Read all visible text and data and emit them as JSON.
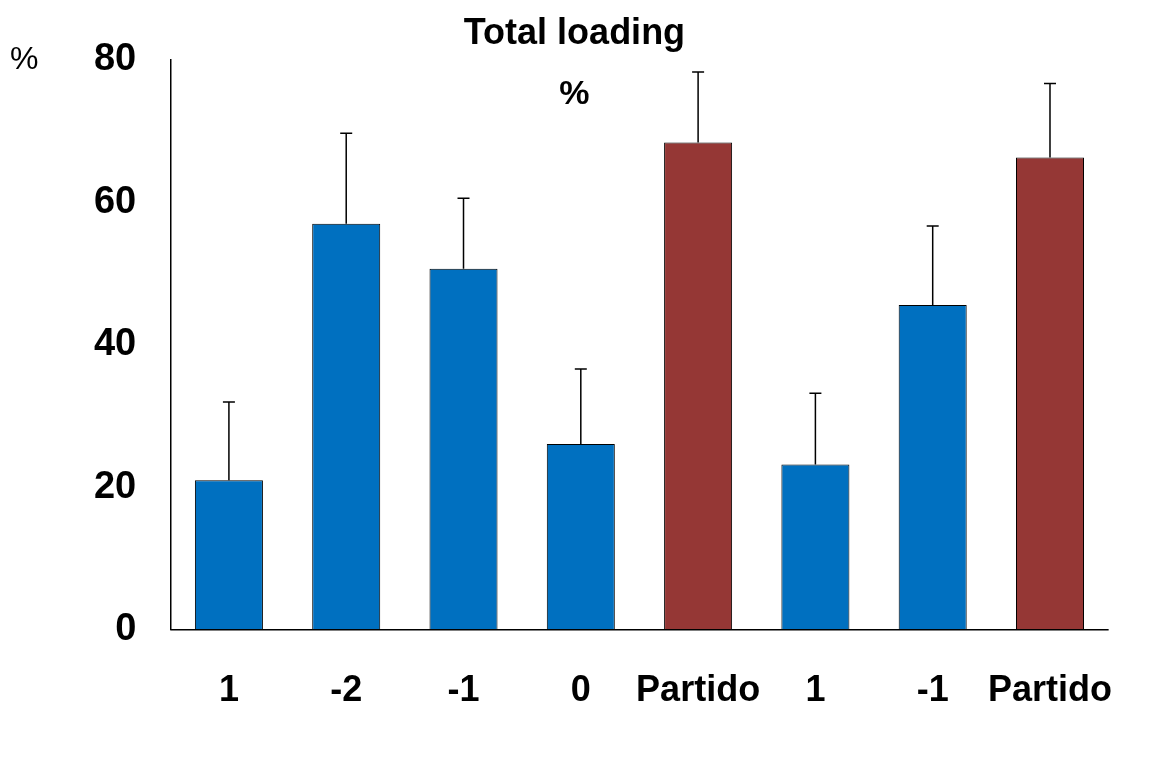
{
  "chart_data": {
    "type": "bar",
    "title": "Total loading",
    "subtitle": "%",
    "ylabel": "%",
    "categories": [
      "1",
      "-2",
      "-1",
      "0",
      "Partido",
      "1",
      "-1",
      "Partido"
    ],
    "values": [
      21,
      57,
      50.7,
      26.1,
      68.4,
      23.2,
      45.6,
      66.3
    ],
    "colors": [
      "#0070c0",
      "#0070c0",
      "#0070c0",
      "#0070c0",
      "#953735",
      "#0070c0",
      "#0070c0",
      "#953735"
    ],
    "errors": [
      [
        21,
        32
      ],
      [
        57,
        69.7
      ],
      [
        50.7,
        60.6
      ],
      [
        26.1,
        36.6
      ],
      [
        68.4,
        78.3
      ],
      [
        23.2,
        33.2
      ],
      [
        45.6,
        56.7
      ],
      [
        66.3,
        76.7
      ]
    ],
    "ylim": [
      0,
      80
    ],
    "yticks": [
      0,
      20,
      40,
      60,
      80
    ],
    "grid": false,
    "legend": false
  }
}
